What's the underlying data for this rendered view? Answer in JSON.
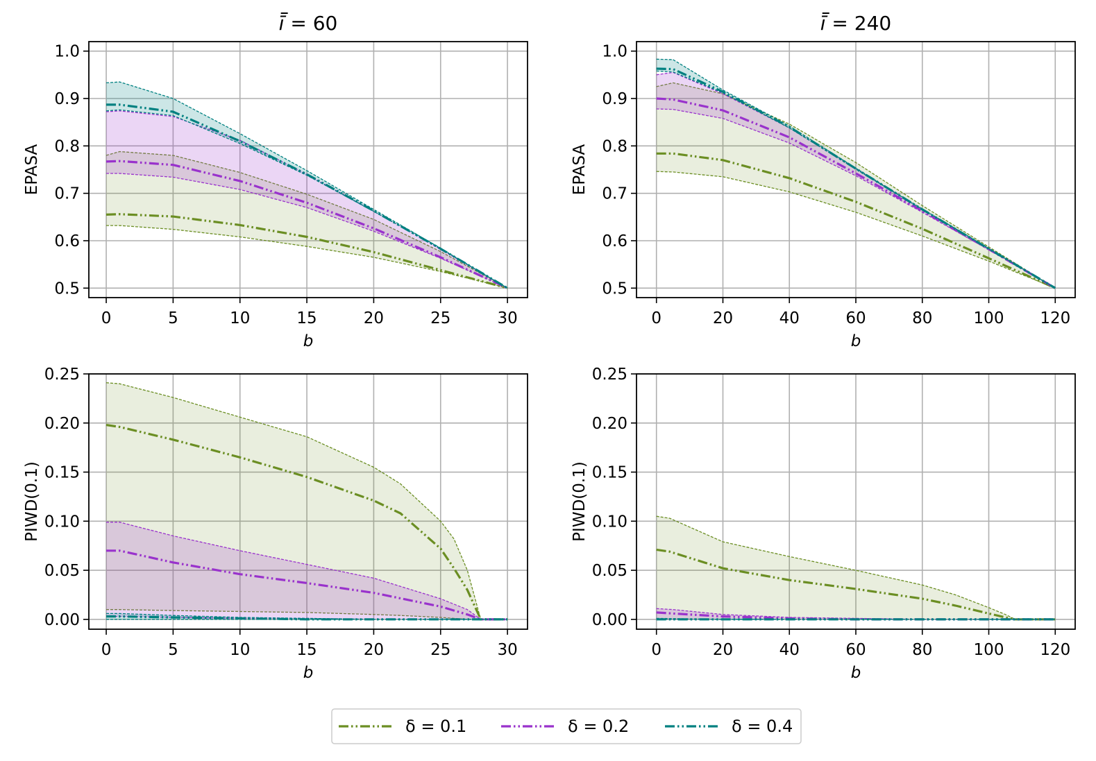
{
  "colors": {
    "delta_0.1": "#6b8e23",
    "delta_0.2": "#9932cc",
    "delta_0.4": "#008080",
    "grid": "#b0b0b0"
  },
  "legend": {
    "placement": "bottom-center",
    "entries": [
      "δ = 0.1",
      "δ = 0.2",
      "δ = 0.4"
    ]
  },
  "chart_data": [
    {
      "type": "line",
      "title_prefix": "ī = ",
      "title_value": "60",
      "xlabel": "b",
      "ylabel": "EPASA",
      "xlim": [
        -1.3,
        31.5
      ],
      "ylim": [
        0.48,
        1.02
      ],
      "xticks": [
        0,
        5,
        10,
        15,
        20,
        25,
        30
      ],
      "xtick_labels": [
        "0",
        "5",
        "10",
        "15",
        "20",
        "25",
        "30"
      ],
      "yticks": [
        0.5,
        0.6,
        0.7,
        0.8,
        0.9,
        1.0
      ],
      "ytick_labels": [
        "0.5",
        "0.6",
        "0.7",
        "0.8",
        "0.9",
        "1.0"
      ],
      "grid": true,
      "series": [
        {
          "name": "δ = 0.1",
          "x": [
            0,
            1,
            5,
            10,
            15,
            20,
            25,
            30
          ],
          "mean": [
            0.655,
            0.656,
            0.651,
            0.633,
            0.608,
            0.576,
            0.538,
            0.5
          ],
          "upper": [
            0.78,
            0.788,
            0.78,
            0.744,
            0.698,
            0.645,
            0.577,
            0.5
          ],
          "lower": [
            0.632,
            0.632,
            0.624,
            0.608,
            0.588,
            0.565,
            0.535,
            0.5
          ]
        },
        {
          "name": "δ = 0.2",
          "x": [
            0,
            1,
            5,
            10,
            15,
            20,
            25,
            30
          ],
          "mean": [
            0.767,
            0.768,
            0.76,
            0.726,
            0.68,
            0.626,
            0.565,
            0.5
          ],
          "upper": [
            0.872,
            0.874,
            0.862,
            0.812,
            0.74,
            0.662,
            0.582,
            0.5
          ],
          "lower": [
            0.742,
            0.742,
            0.734,
            0.708,
            0.67,
            0.62,
            0.563,
            0.5
          ]
        },
        {
          "name": "δ = 0.4",
          "x": [
            0,
            1,
            5,
            10,
            15,
            20,
            25,
            30
          ],
          "mean": [
            0.887,
            0.887,
            0.872,
            0.81,
            0.74,
            0.663,
            0.583,
            0.5
          ],
          "upper": [
            0.933,
            0.935,
            0.9,
            0.826,
            0.748,
            0.666,
            0.584,
            0.5
          ],
          "lower": [
            0.874,
            0.876,
            0.864,
            0.805,
            0.738,
            0.662,
            0.583,
            0.5
          ]
        }
      ]
    },
    {
      "type": "line",
      "title_prefix": "ī = ",
      "title_value": "240",
      "xlabel": "b",
      "ylabel": "EPASA",
      "xlim": [
        -6,
        126
      ],
      "ylim": [
        0.48,
        1.02
      ],
      "xticks": [
        0,
        20,
        40,
        60,
        80,
        100,
        120
      ],
      "xtick_labels": [
        "0",
        "20",
        "40",
        "60",
        "80",
        "100",
        "120"
      ],
      "yticks": [
        0.5,
        0.6,
        0.7,
        0.8,
        0.9,
        1.0
      ],
      "ytick_labels": [
        "0.5",
        "0.6",
        "0.7",
        "0.8",
        "0.9",
        "1.0"
      ],
      "grid": true,
      "series": [
        {
          "name": "δ = 0.1",
          "x": [
            0,
            5,
            20,
            40,
            60,
            80,
            100,
            120
          ],
          "mean": [
            0.784,
            0.784,
            0.77,
            0.732,
            0.682,
            0.625,
            0.563,
            0.5
          ],
          "upper": [
            0.925,
            0.933,
            0.91,
            0.846,
            0.765,
            0.674,
            0.587,
            0.5
          ],
          "lower": [
            0.746,
            0.745,
            0.735,
            0.703,
            0.66,
            0.61,
            0.557,
            0.5
          ]
        },
        {
          "name": "δ = 0.2",
          "x": [
            0,
            5,
            20,
            40,
            60,
            80,
            100,
            120
          ],
          "mean": [
            0.9,
            0.898,
            0.875,
            0.818,
            0.742,
            0.663,
            0.582,
            0.5
          ],
          "upper": [
            0.95,
            0.955,
            0.91,
            0.838,
            0.752,
            0.666,
            0.583,
            0.5
          ],
          "lower": [
            0.878,
            0.877,
            0.858,
            0.806,
            0.737,
            0.66,
            0.581,
            0.5
          ]
        },
        {
          "name": "δ = 0.4",
          "x": [
            0,
            5,
            20,
            40,
            60,
            80,
            100,
            120
          ],
          "mean": [
            0.963,
            0.962,
            0.914,
            0.84,
            0.752,
            0.666,
            0.583,
            0.5
          ],
          "upper": [
            0.983,
            0.982,
            0.918,
            0.842,
            0.753,
            0.667,
            0.584,
            0.5
          ],
          "lower": [
            0.958,
            0.956,
            0.912,
            0.838,
            0.751,
            0.666,
            0.583,
            0.5
          ]
        }
      ]
    },
    {
      "type": "line",
      "xlabel": "b",
      "ylabel": "PIWD(0.1)",
      "xlim": [
        -1.3,
        31.5
      ],
      "ylim": [
        -0.01,
        0.25
      ],
      "xticks": [
        0,
        5,
        10,
        15,
        20,
        25,
        30
      ],
      "xtick_labels": [
        "0",
        "5",
        "10",
        "15",
        "20",
        "25",
        "30"
      ],
      "yticks": [
        0.0,
        0.05,
        0.1,
        0.15,
        0.2,
        0.25
      ],
      "ytick_labels": [
        "0.00",
        "0.05",
        "0.10",
        "0.15",
        "0.20",
        "0.25"
      ],
      "grid": true,
      "series": [
        {
          "name": "δ = 0.1",
          "x": [
            0,
            1,
            5,
            10,
            15,
            20,
            22,
            25,
            26,
            27,
            28,
            30
          ],
          "mean": [
            0.198,
            0.196,
            0.183,
            0.165,
            0.145,
            0.121,
            0.108,
            0.072,
            0.052,
            0.03,
            0.0,
            0.0
          ],
          "upper": [
            0.241,
            0.24,
            0.226,
            0.206,
            0.186,
            0.155,
            0.138,
            0.1,
            0.082,
            0.05,
            0.0,
            0.0
          ],
          "lower": [
            0.01,
            0.01,
            0.009,
            0.008,
            0.007,
            0.005,
            0.004,
            0.002,
            0.001,
            0.0,
            0.0,
            0.0
          ]
        },
        {
          "name": "δ = 0.2",
          "x": [
            0,
            1,
            5,
            10,
            15,
            20,
            25,
            27,
            28,
            30
          ],
          "mean": [
            0.07,
            0.07,
            0.058,
            0.046,
            0.037,
            0.027,
            0.013,
            0.005,
            0.0,
            0.0
          ],
          "upper": [
            0.099,
            0.099,
            0.085,
            0.07,
            0.056,
            0.042,
            0.021,
            0.01,
            0.0,
            0.0
          ],
          "lower": [
            0.003,
            0.003,
            0.002,
            0.001,
            0.001,
            0.0,
            0.0,
            0.0,
            0.0,
            0.0
          ]
        },
        {
          "name": "δ = 0.4",
          "x": [
            0,
            1,
            5,
            10,
            15,
            20,
            25,
            30
          ],
          "mean": [
            0.003,
            0.003,
            0.002,
            0.001,
            0.0,
            0.0,
            0.0,
            0.0
          ],
          "upper": [
            0.006,
            0.006,
            0.004,
            0.002,
            0.001,
            0.0,
            0.0,
            0.0
          ],
          "lower": [
            0.0,
            0.0,
            0.0,
            0.0,
            0.0,
            0.0,
            0.0,
            0.0
          ]
        }
      ]
    },
    {
      "type": "line",
      "xlabel": "b",
      "ylabel": "PIWD(0.1)",
      "xlim": [
        -6,
        126
      ],
      "ylim": [
        -0.01,
        0.25
      ],
      "xticks": [
        0,
        20,
        40,
        60,
        80,
        100,
        120
      ],
      "xtick_labels": [
        "0",
        "20",
        "40",
        "60",
        "80",
        "100",
        "120"
      ],
      "yticks": [
        0.0,
        0.05,
        0.1,
        0.15,
        0.2,
        0.25
      ],
      "ytick_labels": [
        "0.00",
        "0.05",
        "0.10",
        "0.15",
        "0.20",
        "0.25"
      ],
      "grid": true,
      "series": [
        {
          "name": "δ = 0.1",
          "x": [
            0,
            4,
            20,
            40,
            60,
            80,
            90,
            100,
            105,
            108,
            120
          ],
          "mean": [
            0.071,
            0.069,
            0.052,
            0.04,
            0.031,
            0.021,
            0.014,
            0.006,
            0.002,
            0.0,
            0.0
          ],
          "upper": [
            0.105,
            0.103,
            0.079,
            0.064,
            0.05,
            0.035,
            0.025,
            0.012,
            0.005,
            0.0,
            0.0
          ],
          "lower": [
            0.0,
            0.0,
            0.0,
            0.0,
            0.0,
            0.0,
            0.0,
            0.0,
            0.0,
            0.0,
            0.0
          ]
        },
        {
          "name": "δ = 0.2",
          "x": [
            0,
            5,
            20,
            40,
            60,
            80,
            120
          ],
          "mean": [
            0.007,
            0.006,
            0.003,
            0.001,
            0.0,
            0.0,
            0.0
          ],
          "upper": [
            0.011,
            0.01,
            0.005,
            0.002,
            0.001,
            0.0,
            0.0
          ],
          "lower": [
            0.0,
            0.0,
            0.0,
            0.0,
            0.0,
            0.0,
            0.0
          ]
        },
        {
          "name": "δ = 0.4",
          "x": [
            0,
            20,
            40,
            60,
            80,
            120
          ],
          "mean": [
            0.0,
            0.0,
            0.0,
            0.0,
            0.0,
            0.0
          ],
          "upper": [
            0.001,
            0.0,
            0.0,
            0.0,
            0.0,
            0.0
          ],
          "lower": [
            0.0,
            0.0,
            0.0,
            0.0,
            0.0,
            0.0
          ]
        }
      ]
    }
  ]
}
